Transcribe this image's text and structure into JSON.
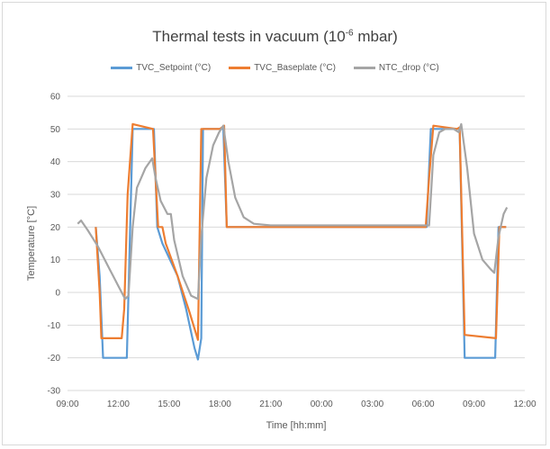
{
  "chart_data": {
    "type": "line",
    "title_main": "Thermal tests in vacuum (10",
    "title_exp": "-6",
    "title_tail": " mbar)",
    "xlabel": "Time [hh:mm]",
    "ylabel": "Temperature [°C]",
    "ylim": [
      -30,
      60
    ],
    "y_ticks": [
      -30,
      -20,
      -10,
      0,
      10,
      20,
      30,
      40,
      50,
      60
    ],
    "x_range_hours": [
      9,
      36
    ],
    "x_tick_labels": [
      "09:00",
      "12:00",
      "15:00",
      "18:00",
      "21:00",
      "00:00",
      "03:00",
      "06:00",
      "09:00",
      "12:00"
    ],
    "grid": true,
    "legend_position": "top",
    "series": [
      {
        "name": "TVC_Setpoint (°C)",
        "color": "#5b9bd5",
        "points": [
          [
            10.67,
            20
          ],
          [
            10.9,
            5
          ],
          [
            11.1,
            -20
          ],
          [
            12.5,
            -20
          ],
          [
            12.85,
            50
          ],
          [
            14.1,
            50
          ],
          [
            14.3,
            20
          ],
          [
            14.6,
            15
          ],
          [
            15.5,
            5
          ],
          [
            16.0,
            -5
          ],
          [
            16.5,
            -17
          ],
          [
            16.7,
            -20.5
          ],
          [
            16.9,
            -14
          ],
          [
            17.0,
            50
          ],
          [
            18.2,
            50
          ],
          [
            18.4,
            20
          ],
          [
            30.2,
            20
          ],
          [
            30.45,
            50
          ],
          [
            32.15,
            50
          ],
          [
            32.45,
            -20
          ],
          [
            34.25,
            -20
          ],
          [
            34.45,
            20
          ],
          [
            34.9,
            20
          ]
        ]
      },
      {
        "name": "TVC_Baseplate (°C)",
        "color": "#ed7d31",
        "points": [
          [
            10.67,
            20
          ],
          [
            10.9,
            0
          ],
          [
            11.0,
            -14
          ],
          [
            12.2,
            -14
          ],
          [
            12.35,
            -5
          ],
          [
            12.55,
            30
          ],
          [
            12.85,
            51.5
          ],
          [
            14.05,
            50
          ],
          [
            14.2,
            35
          ],
          [
            14.35,
            20
          ],
          [
            14.6,
            20
          ],
          [
            14.8,
            15
          ],
          [
            15.5,
            5
          ],
          [
            16.2,
            -6
          ],
          [
            16.7,
            -14.5
          ],
          [
            16.9,
            50
          ],
          [
            18.0,
            50
          ],
          [
            18.25,
            51
          ],
          [
            18.4,
            20
          ],
          [
            30.15,
            20
          ],
          [
            30.35,
            35
          ],
          [
            30.6,
            51
          ],
          [
            32.0,
            50
          ],
          [
            32.15,
            50.5
          ],
          [
            32.45,
            -13
          ],
          [
            34.3,
            -14
          ],
          [
            34.5,
            20
          ],
          [
            34.9,
            20
          ]
        ]
      },
      {
        "name": "NTC_drop (°C)",
        "color": "#a5a5a5",
        "points": [
          [
            9.6,
            21
          ],
          [
            9.8,
            22
          ],
          [
            10.2,
            19
          ],
          [
            10.8,
            14
          ],
          [
            11.5,
            7
          ],
          [
            12.0,
            2
          ],
          [
            12.4,
            -2
          ],
          [
            12.6,
            -1
          ],
          [
            12.85,
            20
          ],
          [
            13.1,
            32
          ],
          [
            13.6,
            38
          ],
          [
            14.0,
            41
          ],
          [
            14.2,
            35
          ],
          [
            14.5,
            28
          ],
          [
            14.9,
            24
          ],
          [
            15.1,
            24
          ],
          [
            15.3,
            16
          ],
          [
            15.8,
            5
          ],
          [
            16.3,
            -1
          ],
          [
            16.7,
            -2
          ],
          [
            16.9,
            17
          ],
          [
            17.2,
            35
          ],
          [
            17.6,
            45
          ],
          [
            17.95,
            49
          ],
          [
            18.2,
            51
          ],
          [
            18.5,
            40
          ],
          [
            18.9,
            29
          ],
          [
            19.4,
            23
          ],
          [
            20.0,
            21
          ],
          [
            21.0,
            20.5
          ],
          [
            30.35,
            20.5
          ],
          [
            30.6,
            42
          ],
          [
            30.95,
            49
          ],
          [
            31.3,
            50
          ],
          [
            31.8,
            50
          ],
          [
            32.1,
            49
          ],
          [
            32.25,
            51.5
          ],
          [
            32.6,
            38
          ],
          [
            33.0,
            18
          ],
          [
            33.5,
            10
          ],
          [
            34.0,
            7
          ],
          [
            34.2,
            6
          ],
          [
            34.45,
            17
          ],
          [
            34.75,
            24
          ],
          [
            34.95,
            26
          ]
        ]
      }
    ]
  }
}
